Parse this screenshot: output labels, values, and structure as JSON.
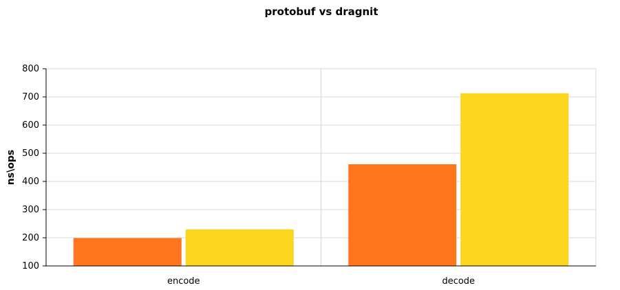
{
  "chart_data": {
    "type": "bar",
    "title": "protobuf vs dragnit",
    "xlabel": "",
    "ylabel": "ns\\ops",
    "categories": [
      "encode",
      "decode"
    ],
    "series": [
      {
        "values": [
          199,
          461
        ],
        "color": "#FF761C"
      },
      {
        "values": [
          230,
          713
        ],
        "color": "#FAD61E"
      }
    ],
    "ylim": [
      100,
      800
    ],
    "yticks": [
      100,
      200,
      300,
      400,
      500,
      600,
      700,
      800
    ],
    "grid": true,
    "legend": "none"
  }
}
